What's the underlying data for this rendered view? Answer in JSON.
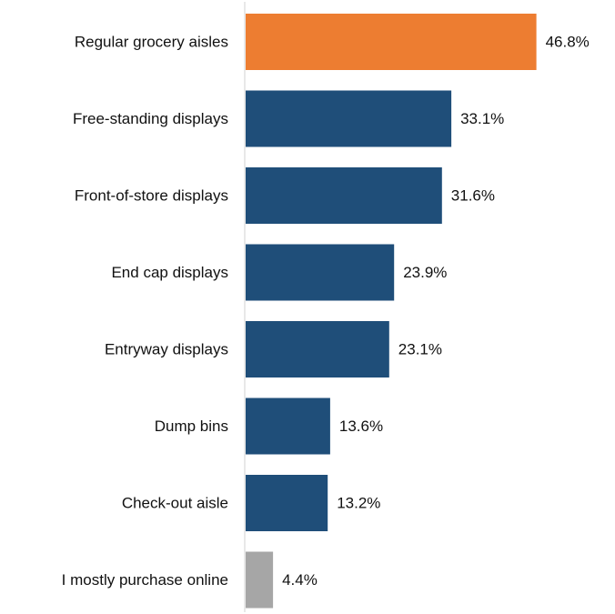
{
  "chart_data": {
    "type": "bar",
    "orientation": "horizontal",
    "categories": [
      "Regular grocery aisles",
      "Free-standing displays",
      "Front-of-store displays",
      "End cap displays",
      "Entryway displays",
      "Dump bins",
      "Check-out aisle",
      "I mostly purchase online"
    ],
    "values": [
      46.8,
      33.1,
      31.6,
      23.9,
      23.1,
      13.6,
      13.2,
      4.4
    ],
    "value_labels": [
      "46.8%",
      "33.1%",
      "31.6%",
      "23.9%",
      "23.1%",
      "13.6%",
      "13.2%",
      "4.4%"
    ],
    "bar_colors": [
      "#ED7D31",
      "#1F4E79",
      "#1F4E79",
      "#1F4E79",
      "#1F4E79",
      "#1F4E79",
      "#1F4E79",
      "#A6A6A6"
    ],
    "xlim": [
      0,
      50
    ],
    "grid": false,
    "legend": "none"
  }
}
